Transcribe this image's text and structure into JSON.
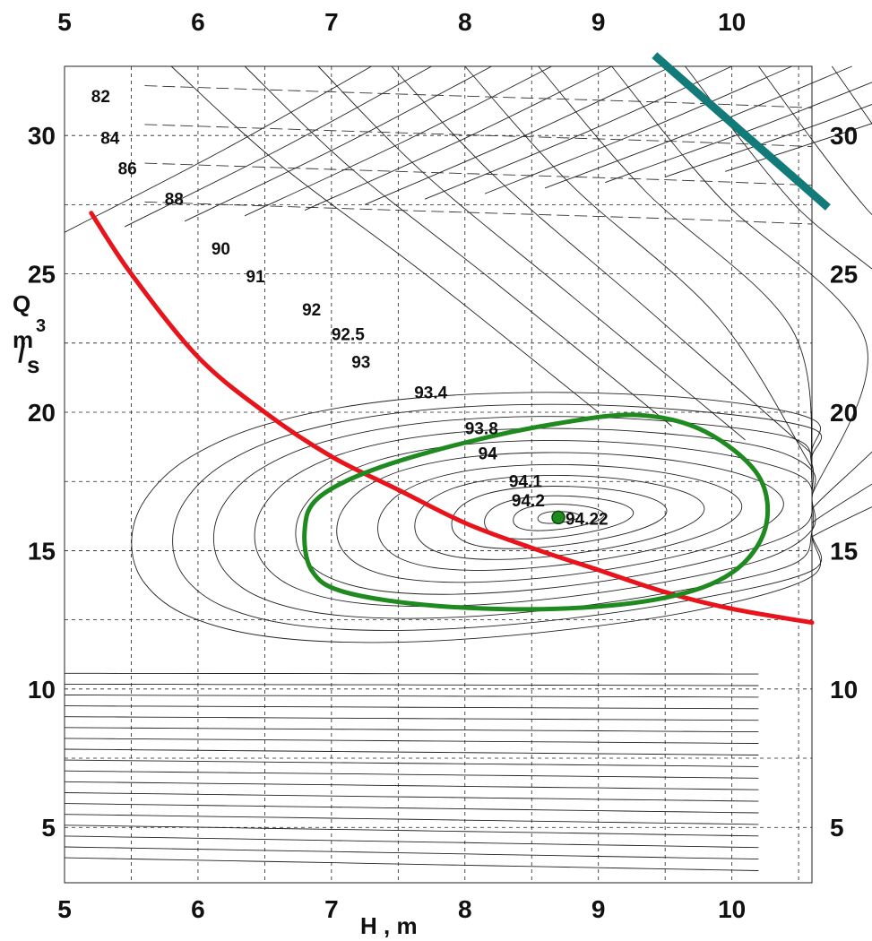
{
  "chart_data": {
    "type": "line",
    "title": "",
    "xlabel": "H , m",
    "ylabel": "Q m3/s",
    "ylabel_parts": {
      "q": "Q",
      "m": "m",
      "exp": "3",
      "slash": "/",
      "s": "s"
    },
    "xlim": [
      5,
      10.6
    ],
    "ylim": [
      3,
      32.5
    ],
    "x_ticks": [
      5,
      6,
      7,
      8,
      9,
      10
    ],
    "y_ticks": [
      5,
      10,
      15,
      20,
      25,
      30
    ],
    "grid": true,
    "series": [
      {
        "name": "",
        "color": "#e8141b",
        "points": [
          [
            5.2,
            27.2
          ],
          [
            5.5,
            25.0
          ],
          [
            6.0,
            22.0
          ],
          [
            6.5,
            20.0
          ],
          [
            7.0,
            18.4
          ],
          [
            7.5,
            17.2
          ],
          [
            8.0,
            16.0
          ],
          [
            8.5,
            15.1
          ],
          [
            9.0,
            14.3
          ],
          [
            9.5,
            13.5
          ],
          [
            10.0,
            12.9
          ],
          [
            10.6,
            12.4
          ]
        ]
      },
      {
        "name": "",
        "color": "#1f8a1f",
        "closed": true,
        "points": [
          [
            6.8,
            15.8
          ],
          [
            6.9,
            16.9
          ],
          [
            7.3,
            17.9
          ],
          [
            8.0,
            18.9
          ],
          [
            8.7,
            19.6
          ],
          [
            9.3,
            19.9
          ],
          [
            9.8,
            19.3
          ],
          [
            10.2,
            17.7
          ],
          [
            10.25,
            15.8
          ],
          [
            10.0,
            14.2
          ],
          [
            9.5,
            13.3
          ],
          [
            8.7,
            12.9
          ],
          [
            7.8,
            13.0
          ],
          [
            7.1,
            13.5
          ],
          [
            6.85,
            14.3
          ]
        ]
      },
      {
        "name": "",
        "color": "#137a7a",
        "points": [
          [
            9.42,
            32.9
          ],
          [
            10.72,
            27.4
          ]
        ]
      }
    ],
    "annotations": [
      {
        "text": "94.22",
        "x": 8.7,
        "y": 16.2,
        "marker": true,
        "marker_color": "#1f8a1f"
      }
    ],
    "efficiency_contours": [
      {
        "label": "82",
        "x": 5.2,
        "y": 31.2
      },
      {
        "label": "84",
        "x": 5.27,
        "y": 29.7
      },
      {
        "label": "86",
        "x": 5.4,
        "y": 28.6
      },
      {
        "label": "88",
        "x": 5.75,
        "y": 27.5
      },
      {
        "label": "90",
        "x": 6.1,
        "y": 25.7
      },
      {
        "label": "91",
        "x": 6.36,
        "y": 24.7
      },
      {
        "label": "92",
        "x": 6.78,
        "y": 23.5
      },
      {
        "label": "92.5",
        "x": 7.0,
        "y": 22.6
      },
      {
        "label": "93",
        "x": 7.15,
        "y": 21.6
      },
      {
        "label": "93.4",
        "x": 7.62,
        "y": 20.5
      },
      {
        "label": "93.8",
        "x": 8.0,
        "y": 19.2
      },
      {
        "label": "94",
        "x": 8.1,
        "y": 18.3
      },
      {
        "label": "94.1",
        "x": 8.33,
        "y": 17.3
      },
      {
        "label": "94.2",
        "x": 8.35,
        "y": 16.6
      }
    ]
  }
}
